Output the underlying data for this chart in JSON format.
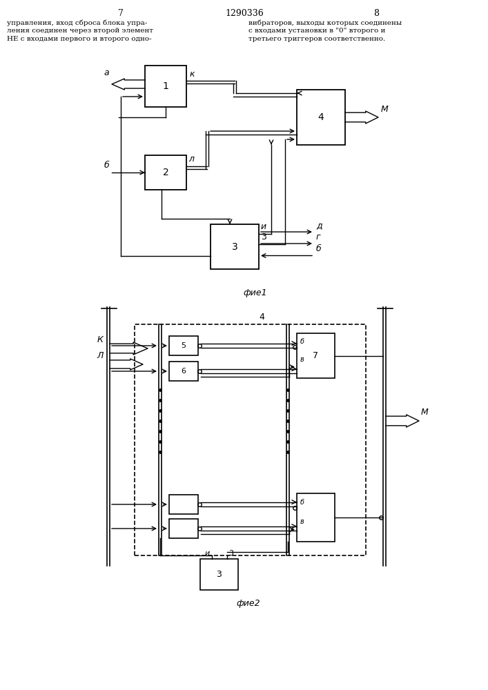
{
  "title_text": "1290336",
  "page_left": "7",
  "page_right": "8",
  "text_left": "управления, вход сброса блока упра-\nления соединен через второй элемент\nНЕ с входами первого и второго одно-",
  "text_right": "вибраторов, выходы которых соединены\nс входами установки в \"0\" второго и\nтретьего триггеров соответственно.",
  "fig1_caption": "фие1",
  "fig2_caption": "фие2",
  "bg_color": "#ffffff",
  "line_color": "#000000"
}
